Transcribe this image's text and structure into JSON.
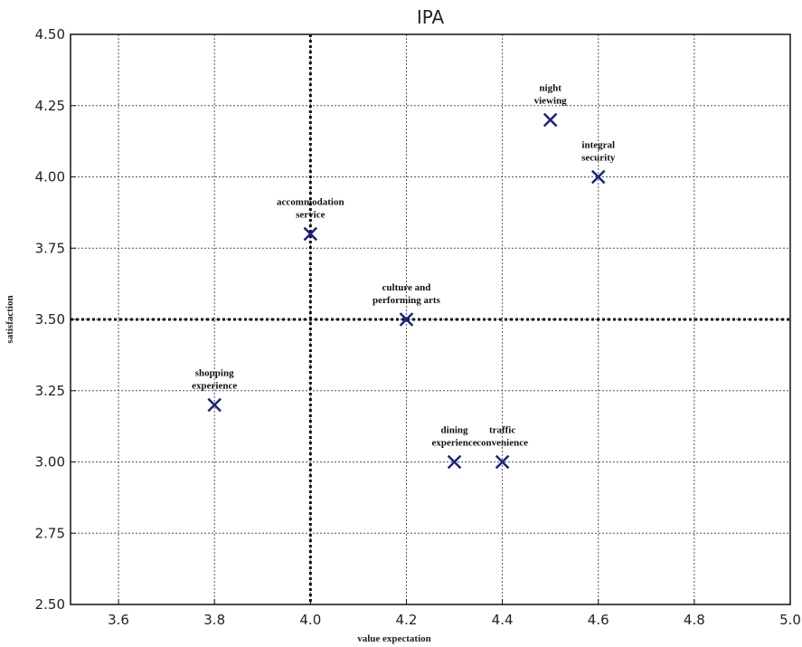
{
  "chart_data": {
    "type": "scatter",
    "title": "IPA",
    "xlabel": "value expectation",
    "ylabel": "satisfaction",
    "xlim": [
      3.5,
      5.0
    ],
    "ylim": [
      2.5,
      4.5
    ],
    "xticks": [
      3.6,
      3.8,
      4.0,
      4.2,
      4.4,
      4.6,
      4.8,
      5.0
    ],
    "yticks": [
      2.5,
      2.75,
      3.0,
      3.25,
      3.5,
      3.75,
      4.0,
      4.25,
      4.5
    ],
    "xtick_labels": [
      "3.6",
      "3.8",
      "4.0",
      "4.2",
      "4.4",
      "4.6",
      "4.8",
      "5.0"
    ],
    "ytick_labels": [
      "2.50",
      "2.75",
      "3.00",
      "3.25",
      "3.50",
      "3.75",
      "4.00",
      "4.25",
      "4.50"
    ],
    "grid": true,
    "reference_lines": {
      "x": 4.0,
      "y": 3.5
    },
    "marker_color": "#1a237e",
    "points": [
      {
        "label": [
          "night",
          "viewing"
        ],
        "x": 4.5,
        "y": 4.2
      },
      {
        "label": [
          "integral",
          "security"
        ],
        "x": 4.6,
        "y": 4.0
      },
      {
        "label": [
          "accommodation",
          "service"
        ],
        "x": 4.0,
        "y": 3.8
      },
      {
        "label": [
          "culture and",
          "performing arts"
        ],
        "x": 4.2,
        "y": 3.5
      },
      {
        "label": [
          "shopping",
          "experience"
        ],
        "x": 3.8,
        "y": 3.2
      },
      {
        "label": [
          "dining",
          "experience"
        ],
        "x": 4.3,
        "y": 3.0
      },
      {
        "label": [
          "traffic",
          "convenience"
        ],
        "x": 4.4,
        "y": 3.0
      }
    ]
  }
}
